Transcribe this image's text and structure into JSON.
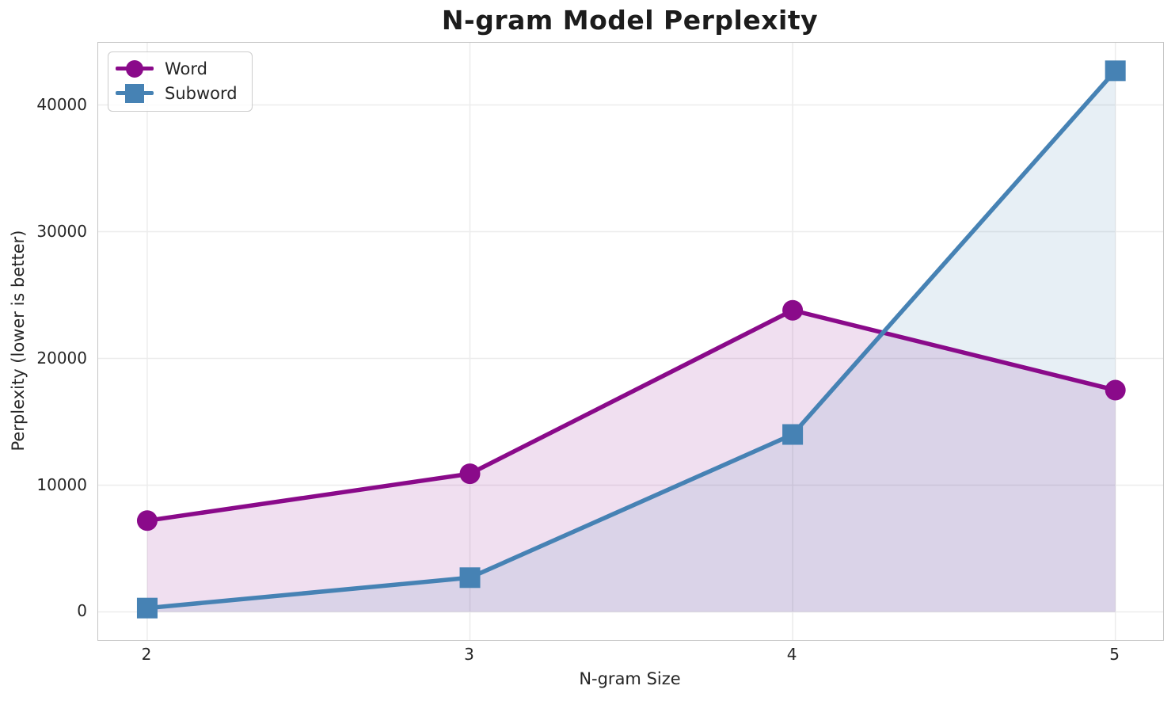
{
  "chart_data": {
    "type": "line",
    "title": "N-gram Model Perplexity",
    "xlabel": "N-gram Size",
    "ylabel": "Perplexity (lower is better)",
    "x": [
      2,
      3,
      4,
      5
    ],
    "x_tick_labels": [
      "2",
      "3",
      "4",
      "5"
    ],
    "y_tick_values": [
      0,
      10000,
      20000,
      30000,
      40000
    ],
    "y_tick_labels": [
      "0",
      "10000",
      "20000",
      "30000",
      "40000"
    ],
    "xlim": [
      1.848,
      5.148
    ],
    "ylim": [
      -2220,
      44910
    ],
    "grid": true,
    "area_fill": true,
    "legend_position": "upper left",
    "series": [
      {
        "name": "Word",
        "marker": "circle",
        "color": "#8a0a8a",
        "fill_opacity": 0.13,
        "values": [
          7200,
          10900,
          23800,
          17500
        ]
      },
      {
        "name": "Subword",
        "marker": "square",
        "color": "#4682b4",
        "fill_opacity": 0.13,
        "values": [
          300,
          2700,
          14000,
          42700
        ]
      }
    ]
  },
  "colors": {
    "grid": "#ececec",
    "spine": "#c6c6c6",
    "tick_text": "#262626",
    "title_text": "#1c1c1c",
    "background": "#ffffff"
  }
}
